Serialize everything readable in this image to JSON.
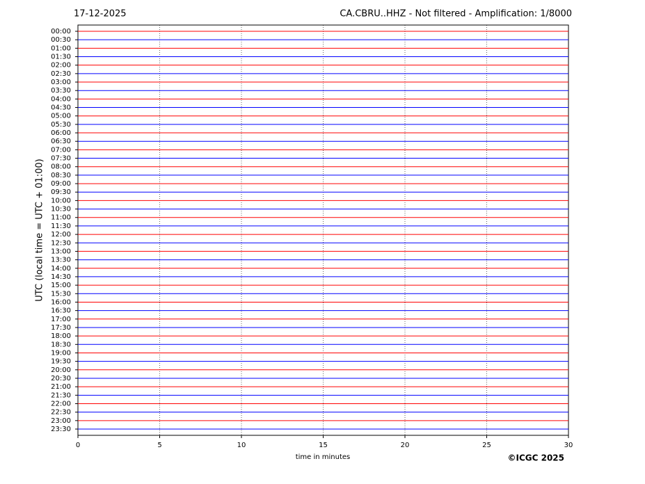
{
  "chart_data": {
    "type": "helicorder",
    "date": "17-12-2025",
    "title": "CA.CBRU..HHZ - Not filtered - Amplification: 1/8000",
    "x_label": "time in minutes",
    "y_label": "UTC (local time = UTC + 01:00)",
    "credit": "©ICGC 2025",
    "categories": [
      "00:00",
      "00:30",
      "01:00",
      "01:30",
      "02:00",
      "02:30",
      "03:00",
      "03:30",
      "04:00",
      "04:30",
      "05:00",
      "05:30",
      "06:00",
      "06:30",
      "07:00",
      "07:30",
      "08:00",
      "08:30",
      "09:00",
      "09:30",
      "10:00",
      "10:30",
      "11:00",
      "11:30",
      "12:00",
      "12:30",
      "13:00",
      "13:30",
      "14:00",
      "14:30",
      "15:00",
      "15:30",
      "16:00",
      "16:30",
      "17:00",
      "17:30",
      "18:00",
      "18:30",
      "19:00",
      "19:30",
      "20:00",
      "20:30",
      "21:00",
      "21:30",
      "22:00",
      "22:30",
      "23:00",
      "23:30"
    ],
    "colors": [
      "#ff0000",
      "#0000ff"
    ],
    "xlim": [
      0,
      30
    ],
    "xticks": [
      0,
      5,
      10,
      15,
      20,
      25,
      30
    ],
    "grid": true
  }
}
